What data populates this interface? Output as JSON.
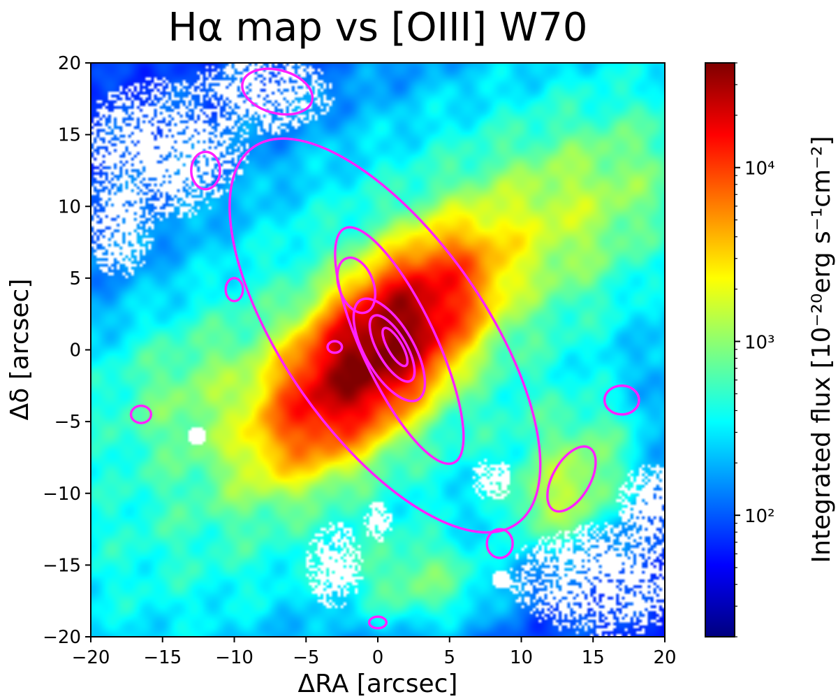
{
  "chart_data": {
    "type": "heatmap",
    "title": "Hα map vs [OIII] W70",
    "xlabel": "ΔRA [arcsec]",
    "ylabel": "Δδ [arcsec]",
    "xlim": [
      -20,
      20
    ],
    "ylim": [
      -20,
      20
    ],
    "xticks": [
      -20,
      -15,
      -10,
      -5,
      0,
      5,
      10,
      15,
      20
    ],
    "yticks": [
      -20,
      -15,
      -10,
      -5,
      0,
      5,
      10,
      15,
      20
    ],
    "colormap": "jet",
    "color_scale": "log",
    "color_range": [
      20,
      40000
    ],
    "colorbar_label": "Integrated flux [10⁻²⁰erg s⁻¹cm⁻²]",
    "colorbar_ticks": [
      {
        "value": 100,
        "label": "10²"
      },
      {
        "value": 1000,
        "label": "10³"
      },
      {
        "value": 10000,
        "label": "10⁴"
      }
    ],
    "contour_color": "#ff22ff",
    "map_components": [
      {
        "x": 0,
        "y": 0,
        "sigma_major": 4.5,
        "sigma_minor": 2.0,
        "angle_deg": 45,
        "peak": 40000
      },
      {
        "x": 0,
        "y": 0,
        "sigma_major": 19,
        "sigma_minor": 7,
        "angle_deg": 40,
        "peak": 600
      },
      {
        "x": 0,
        "y": 0,
        "sigma_major": 24,
        "sigma_minor": 18,
        "angle_deg": 20,
        "peak": 140
      },
      {
        "x": 13,
        "y": -10,
        "sigma_major": 2.5,
        "sigma_minor": 1.8,
        "angle_deg": 30,
        "peak": 1200
      },
      {
        "x": 12,
        "y": 9,
        "sigma_major": 6,
        "sigma_minor": 3,
        "angle_deg": 30,
        "peak": 900
      },
      {
        "x": -10,
        "y": -3,
        "sigma_major": 6,
        "sigma_minor": 3,
        "angle_deg": 0,
        "peak": 500
      },
      {
        "x": 3,
        "y": -16,
        "sigma_major": 3,
        "sigma_minor": 2,
        "angle_deg": 0,
        "peak": 600
      },
      {
        "x": 14,
        "y": -6,
        "sigma_major": 3,
        "sigma_minor": 2,
        "angle_deg": 0,
        "peak": 400
      }
    ],
    "masked_regions": [
      {
        "x": -15,
        "y": 14,
        "rx": 6,
        "ry": 5
      },
      {
        "x": -8,
        "y": 18,
        "rx": 5,
        "ry": 3
      },
      {
        "x": -18,
        "y": 9,
        "rx": 2.5,
        "ry": 4
      },
      {
        "x": 16,
        "y": -16,
        "rx": 7,
        "ry": 4
      },
      {
        "x": 19,
        "y": -11,
        "rx": 2.5,
        "ry": 3
      },
      {
        "x": -3,
        "y": -15,
        "rx": 2,
        "ry": 3
      },
      {
        "x": 0,
        "y": -12,
        "rx": 1,
        "ry": 1.5
      },
      {
        "x": 8,
        "y": -9,
        "rx": 1.5,
        "ry": 1.5
      }
    ],
    "point_sources_masked": [
      {
        "x": -12.6,
        "y": -6,
        "r": 0.7
      },
      {
        "x": 8.6,
        "y": -16,
        "r": 0.6
      }
    ],
    "contours": [
      {
        "x": 1.2,
        "y": 0.2,
        "rx": 0.5,
        "ry": 1.5,
        "angle_deg": -30
      },
      {
        "x": 1.0,
        "y": 0.1,
        "rx": 1.0,
        "ry": 2.6,
        "angle_deg": -30
      },
      {
        "x": 0.8,
        "y": 0.0,
        "rx": 1.7,
        "ry": 4.0,
        "angle_deg": -30
      },
      {
        "x": 1.5,
        "y": 0.3,
        "rx": 2.6,
        "ry": 9.0,
        "angle_deg": -25
      },
      {
        "x": 0.5,
        "y": 1.0,
        "rx": 7.0,
        "ry": 16.0,
        "angle_deg": -35
      },
      {
        "x": -1.5,
        "y": 4.5,
        "rx": 1.2,
        "ry": 2.0,
        "angle_deg": -20
      },
      {
        "x": 13.5,
        "y": -9.0,
        "rx": 1.3,
        "ry": 2.5,
        "angle_deg": 30
      },
      {
        "x": 17.0,
        "y": -3.5,
        "rx": 1.2,
        "ry": 1.0,
        "angle_deg": 0
      },
      {
        "x": -16.5,
        "y": -4.5,
        "rx": 0.7,
        "ry": 0.6,
        "angle_deg": 0
      },
      {
        "x": -10,
        "y": 4.2,
        "rx": 0.6,
        "ry": 0.8,
        "angle_deg": 0
      },
      {
        "x": -3,
        "y": 0.2,
        "rx": 0.5,
        "ry": 0.4,
        "angle_deg": 0
      },
      {
        "x": -7,
        "y": 18,
        "rx": 2.5,
        "ry": 1.5,
        "angle_deg": 15
      },
      {
        "x": -12,
        "y": 12.5,
        "rx": 1.0,
        "ry": 1.3,
        "angle_deg": 0
      },
      {
        "x": 8.5,
        "y": -13.5,
        "rx": 0.9,
        "ry": 1.0,
        "angle_deg": 0
      },
      {
        "x": 0,
        "y": -19,
        "rx": 0.6,
        "ry": 0.4,
        "angle_deg": 0
      }
    ]
  }
}
